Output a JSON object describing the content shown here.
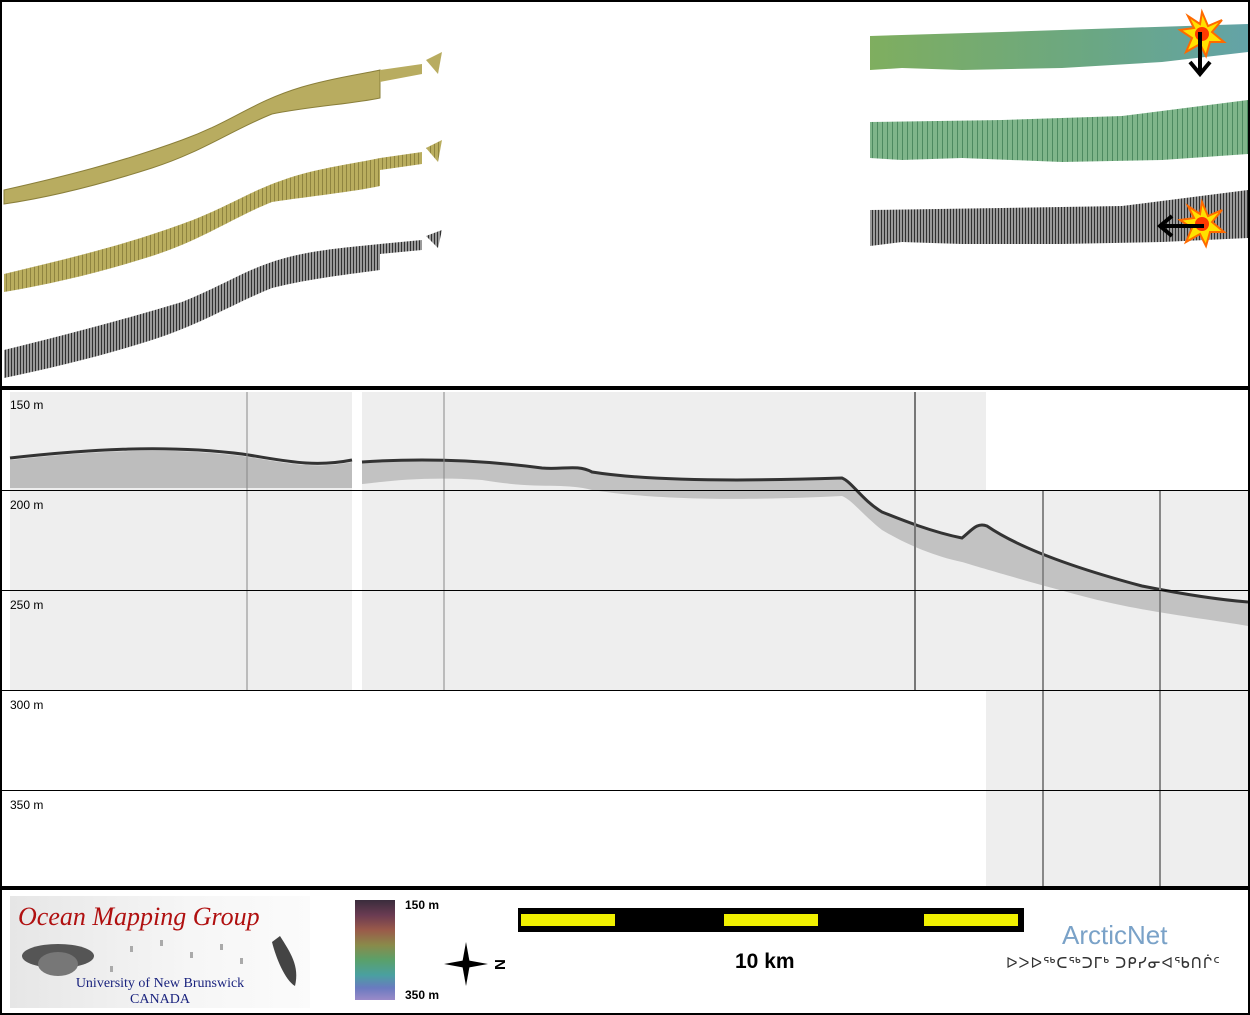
{
  "depth_axis": {
    "labels": [
      "150 m",
      "200 m",
      "250 m",
      "300 m",
      "350 m"
    ]
  },
  "footer": {
    "logo_title": "Ocean Mapping Group",
    "logo_university": "University of New Brunswick",
    "logo_country": "CANADA",
    "colorbar_top_label": "150 m",
    "colorbar_bottom_label": "350 m",
    "north_label": "N",
    "scale_label": "10 km",
    "partner_name": "ArcticNet",
    "partner_syllabics": "ᐅᐳᐅᖅᑕᖅᑐᒥᒃ ᑐᑭᓯᓂᐊᖃᑎᒌᑦ"
  },
  "colors": {
    "frame": "#000000",
    "scale_fill": "#f0f000",
    "omg_red": "#b01010",
    "omg_blue": "#1a237e",
    "arcticnet_blue": "#7aa2c8",
    "swath_olive": "#b6a85a",
    "swath_green": "#6fae7e",
    "swath_gray": "#6a6a6a"
  },
  "icons": {
    "explosion": "explosion-icon",
    "arrow_down": "arrow-down-icon",
    "arrow_left": "arrow-left-icon",
    "north_arrow": "north-arrow-icon"
  }
}
